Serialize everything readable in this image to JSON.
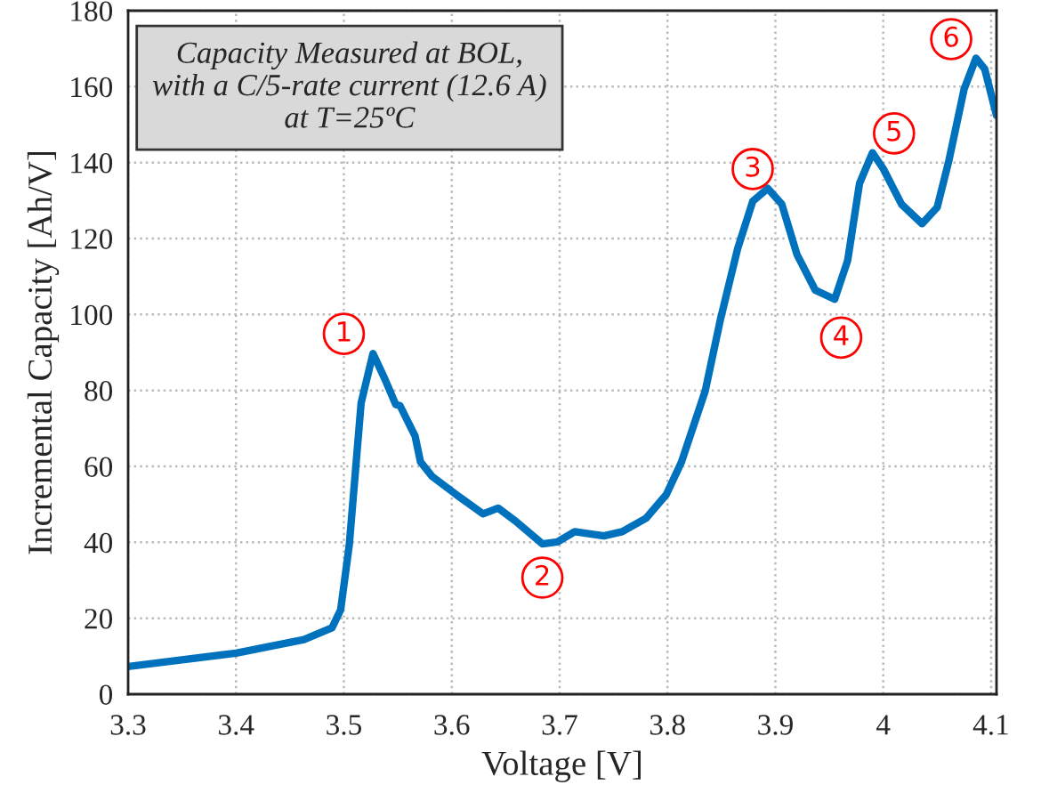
{
  "chart_data": {
    "type": "line",
    "xlabel": "Voltage [V]",
    "ylabel": "Incremental Capacity [Ah/V]",
    "x": [
      3.3,
      3.4,
      3.463,
      3.489,
      3.497,
      3.505,
      3.516,
      3.527,
      3.538,
      3.548,
      3.552,
      3.566,
      3.571,
      3.582,
      3.604,
      3.629,
      3.643,
      3.659,
      3.684,
      3.698,
      3.714,
      3.741,
      3.758,
      3.78,
      3.799,
      3.813,
      3.835,
      3.849,
      3.865,
      3.879,
      3.893,
      3.906,
      3.92,
      3.937,
      3.955,
      3.967,
      3.978,
      3.99,
      4.0,
      4.017,
      4.036,
      4.05,
      4.061,
      4.075,
      4.086,
      4.094,
      4.105
    ],
    "series": [
      {
        "color": "#0072bd",
        "values": [
          7.3,
          10.8,
          14.4,
          17.5,
          22.2,
          39.3,
          76.7,
          89.7,
          83,
          76.3,
          76,
          68,
          61.2,
          57.3,
          52.6,
          47.5,
          49,
          45.6,
          39.6,
          40.1,
          42.8,
          41.7,
          42.8,
          46.3,
          52.6,
          61.2,
          79.9,
          98.6,
          117.3,
          129.8,
          133.2,
          129,
          115.8,
          106.4,
          104,
          114.2,
          134.5,
          142.6,
          138.4,
          129,
          123.9,
          128.2,
          140.7,
          159.4,
          167.5,
          164.7,
          152.4
        ]
      }
    ],
    "xlim": [
      3.3,
      4.105
    ],
    "ylim": [
      0,
      180
    ],
    "xticks": [
      3.3,
      3.4,
      3.5,
      3.6,
      3.7,
      3.8,
      3.9,
      4,
      4.1
    ],
    "yticks": [
      0,
      20,
      40,
      60,
      80,
      100,
      120,
      140,
      160,
      180
    ],
    "grid": true,
    "line_style": "solid",
    "marker": "none",
    "annotations": [
      "Capacity Measured at BOL,\nwith a C/5-rate current (12.6 A)\nat T=25ºC",
      {
        "text": "1",
        "x": 3.5,
        "y": 94.9
      },
      {
        "text": "2",
        "x": 3.684,
        "y": 30.7
      },
      {
        "text": "3",
        "x": 3.879,
        "y": 138.3
      },
      {
        "text": "4",
        "x": 3.961,
        "y": 93.9
      },
      {
        "text": "5",
        "x": 4.01,
        "y": 147.7
      },
      {
        "text": "6",
        "x": 4.063,
        "y": 172.5
      }
    ]
  }
}
